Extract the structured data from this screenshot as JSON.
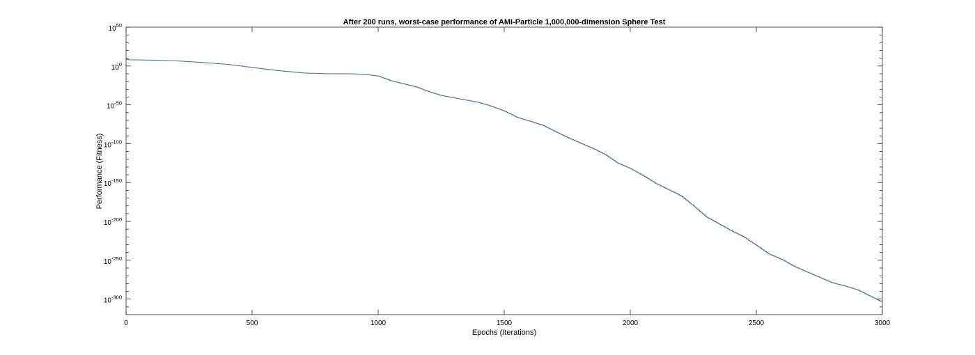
{
  "chart_data": {
    "type": "line",
    "title": "After 200 runs, worst-case performance of AMI-Particle 1,000,000-dimension Sphere Test",
    "xlabel": "Epochs (Iterations)",
    "ylabel": "Performance (Fitness)",
    "xlim": [
      0,
      3000
    ],
    "ylim_log10": [
      -320,
      50
    ],
    "y_scale": "log",
    "grid": false,
    "legend": "none",
    "x_ticks": [
      0,
      500,
      1000,
      1500,
      2000,
      2500,
      3000
    ],
    "y_ticks": [
      {
        "base": "10",
        "exp": "50",
        "log10": 50
      },
      {
        "base": "10",
        "exp": "0",
        "log10": 0
      },
      {
        "base": "10",
        "exp": "-50",
        "log10": -50
      },
      {
        "base": "10",
        "exp": "-100",
        "log10": -100
      },
      {
        "base": "10",
        "exp": "-150",
        "log10": -150
      },
      {
        "base": "10",
        "exp": "-200",
        "log10": -200
      },
      {
        "base": "10",
        "exp": "-250",
        "log10": -250
      },
      {
        "base": "10",
        "exp": "-300",
        "log10": -300
      }
    ],
    "line_color": "#4a6e94",
    "series": [
      {
        "x": [
          0,
          10,
          100,
          200,
          300,
          400,
          500,
          600,
          700,
          800,
          900,
          950,
          1000,
          1050,
          1100,
          1150,
          1200,
          1250,
          1300,
          1350,
          1400,
          1450,
          1500,
          1550,
          1600,
          1650,
          1700,
          1750,
          1800,
          1850,
          1900,
          1950,
          2000,
          2050,
          2100,
          2150,
          2200,
          2250,
          2300,
          2350,
          2400,
          2450,
          2500,
          2550,
          2600,
          2650,
          2700,
          2750,
          2800,
          2850,
          2900,
          2950,
          3000
        ],
        "log10_y": [
          9,
          8,
          7.5,
          6.5,
          4.5,
          2,
          -2,
          -6,
          -9,
          -10,
          -10,
          -11,
          -13,
          -19,
          -23,
          -27,
          -33,
          -38,
          -41,
          -44,
          -47,
          -52,
          -58,
          -66,
          -71,
          -76,
          -84,
          -92,
          -99,
          -106,
          -114,
          -125,
          -132,
          -141,
          -151,
          -159,
          -167,
          -180,
          -194,
          -203,
          -212,
          -220,
          -231,
          -242,
          -249,
          -258,
          -265,
          -272,
          -279,
          -283,
          -288,
          -296,
          -304
        ]
      }
    ]
  }
}
